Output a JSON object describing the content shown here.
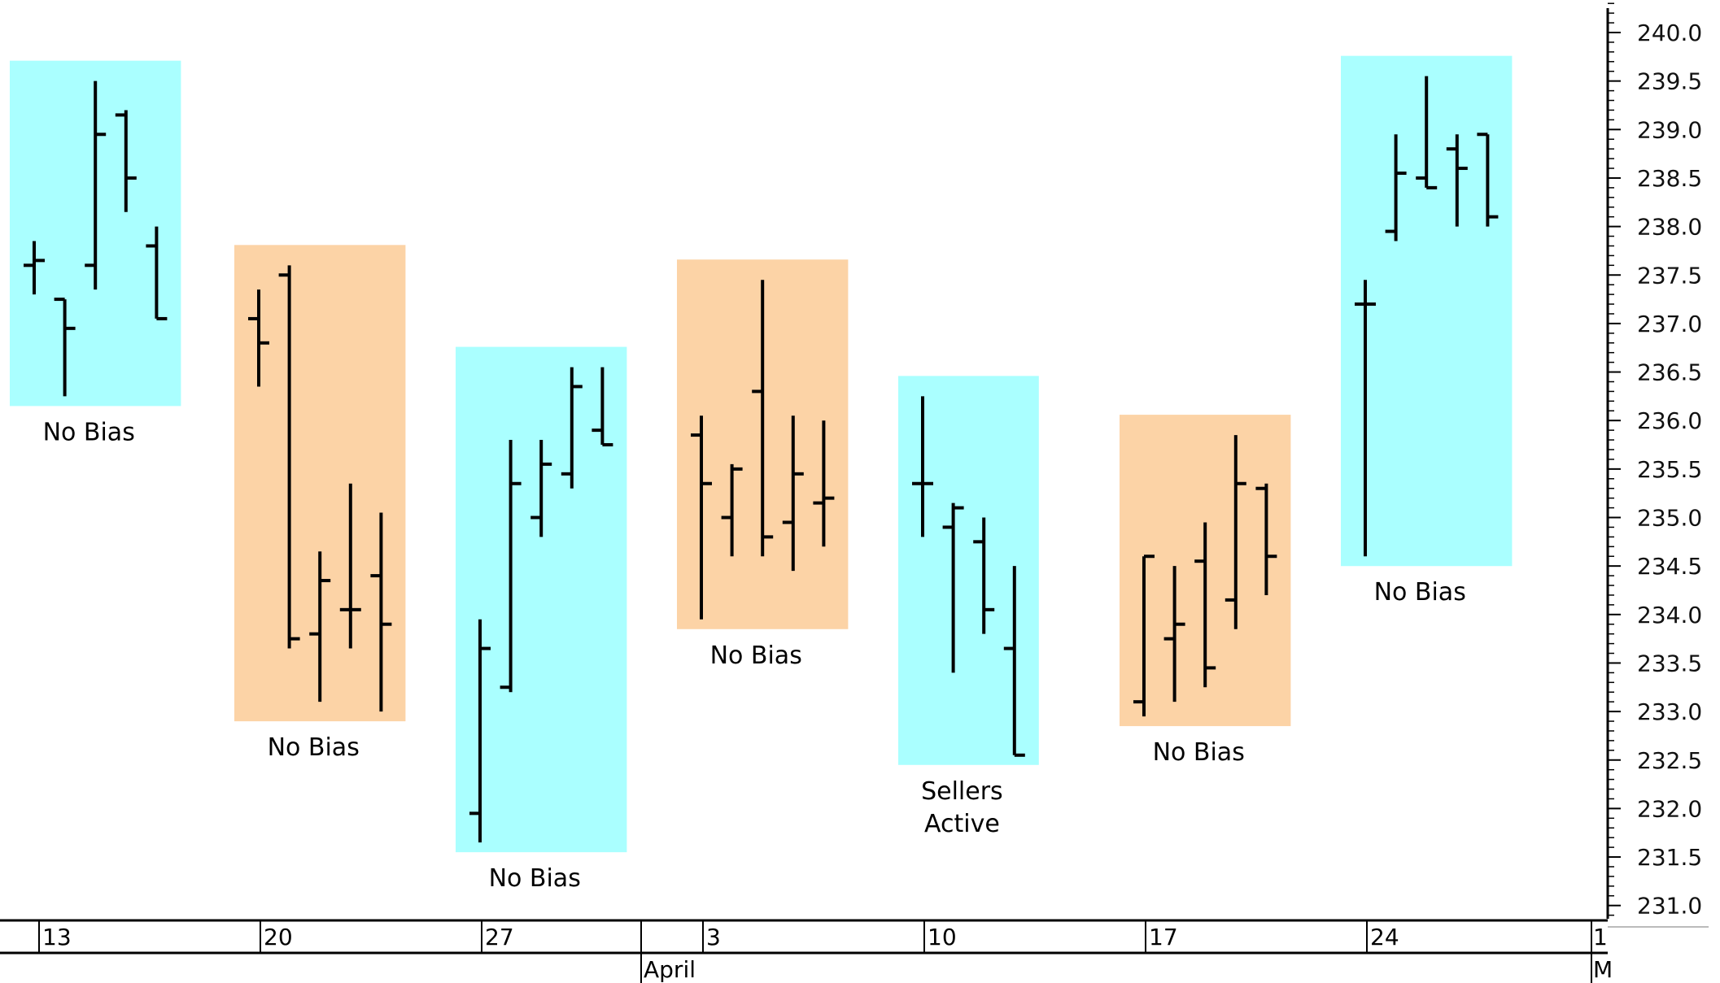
{
  "chart_data": {
    "type": "ohlc",
    "y_axis": {
      "ylim": [
        230.8,
        240.3
      ],
      "ticks": [
        "240.0",
        "239.5",
        "239.0",
        "238.5",
        "238.0",
        "237.5",
        "237.0",
        "236.5",
        "236.0",
        "235.5",
        "235.0",
        "234.5",
        "234.0",
        "233.5",
        "233.0",
        "232.5",
        "232.0",
        "231.5",
        "231.0"
      ],
      "position": "right"
    },
    "x_axis": {
      "day_labels": [
        "13",
        "20",
        "27",
        "3",
        "10",
        "17",
        "24",
        "1"
      ],
      "month_labels": [
        "April",
        "M"
      ]
    },
    "colors": {
      "cyan": "#aaffff",
      "orange": "#fcd3a6",
      "bar": "#000000"
    },
    "weeks": [
      {
        "label": "No Bias",
        "color": "cyan",
        "bars": [
          [
            237.6,
            237.85,
            237.3,
            237.65
          ],
          [
            237.25,
            237.25,
            236.25,
            236.95
          ],
          [
            237.6,
            239.5,
            237.35,
            238.95
          ],
          [
            239.15,
            239.2,
            238.15,
            238.5
          ],
          [
            237.8,
            238.0,
            237.05,
            237.05
          ]
        ]
      },
      {
        "label": "No Bias",
        "color": "orange",
        "bars": [
          [
            237.05,
            237.35,
            236.35,
            236.8
          ],
          [
            237.5,
            237.6,
            233.65,
            233.75
          ],
          [
            233.8,
            234.65,
            233.1,
            234.35
          ],
          [
            234.05,
            235.35,
            233.65,
            234.05
          ],
          [
            234.4,
            235.05,
            233.0,
            233.9
          ]
        ]
      },
      {
        "label": "No Bias",
        "color": "cyan",
        "bars": [
          [
            231.95,
            233.95,
            231.65,
            233.65
          ],
          [
            233.25,
            235.8,
            233.2,
            235.35
          ],
          [
            235.0,
            235.8,
            234.8,
            235.55
          ],
          [
            235.45,
            236.55,
            235.3,
            236.35
          ],
          [
            235.9,
            236.55,
            235.75,
            235.75
          ]
        ]
      },
      {
        "label": "No Bias",
        "color": "orange",
        "bars": [
          [
            235.85,
            236.05,
            233.95,
            235.35
          ],
          [
            235.0,
            235.55,
            234.6,
            235.5
          ],
          [
            236.3,
            237.45,
            234.6,
            234.8
          ],
          [
            234.95,
            236.05,
            234.45,
            235.45
          ],
          [
            235.15,
            236.0,
            234.7,
            235.2
          ]
        ]
      },
      {
        "label": "Sellers\nActive",
        "color": "cyan",
        "bars": [
          [
            235.35,
            236.25,
            234.8,
            235.35
          ],
          [
            234.9,
            235.15,
            233.4,
            235.1
          ],
          [
            234.75,
            235.0,
            233.8,
            234.05
          ],
          [
            233.65,
            234.5,
            232.55,
            232.55
          ]
        ]
      },
      {
        "label": "No Bias",
        "color": "orange",
        "bars": [
          [
            233.1,
            234.6,
            232.95,
            234.6
          ],
          [
            233.75,
            234.5,
            233.1,
            233.9
          ],
          [
            234.55,
            234.95,
            233.25,
            233.45
          ],
          [
            234.15,
            235.85,
            233.85,
            235.35
          ],
          [
            235.3,
            235.35,
            234.2,
            234.6
          ]
        ]
      },
      {
        "label": "No Bias",
        "color": "cyan",
        "bars": [
          [
            237.2,
            237.45,
            234.6,
            237.2
          ],
          [
            237.95,
            238.95,
            237.85,
            238.55
          ],
          [
            238.5,
            239.55,
            238.4,
            238.4
          ],
          [
            238.8,
            238.95,
            238.0,
            238.6
          ],
          [
            238.95,
            238.95,
            238.0,
            238.1
          ]
        ]
      }
    ]
  }
}
